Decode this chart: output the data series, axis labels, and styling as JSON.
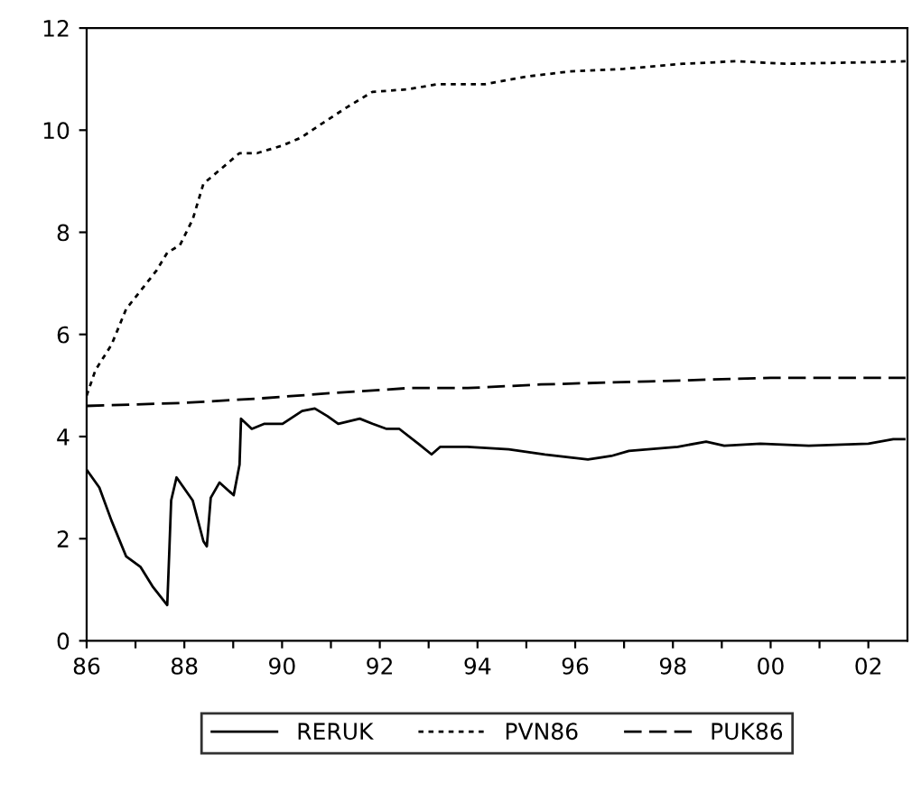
{
  "chart_data": {
    "type": "line",
    "series": [
      {
        "name": "RERUK",
        "color": "#000000",
        "line_style": "solid",
        "x": [
          1986.0,
          1986.26,
          1986.51,
          1986.81,
          1987.1,
          1987.36,
          1987.65,
          1987.69,
          1987.73,
          1987.84,
          1988.17,
          1988.39,
          1988.46,
          1988.54,
          1988.72,
          1989.01,
          1989.13,
          1989.16,
          1989.38,
          1989.64,
          1990.01,
          1990.41,
          1990.67,
          1990.93,
          1991.15,
          1991.59,
          1991.85,
          1992.14,
          1992.4,
          1992.8,
          1993.06,
          1993.24,
          1993.79,
          1994.64,
          1995.38,
          1996.26,
          1996.74,
          1997.1,
          1998.1,
          1998.68,
          1999.05,
          1999.79,
          2000.78,
          2002.0,
          2002.51,
          2002.76
        ],
        "values": [
          3.35,
          3.0,
          2.35,
          1.65,
          1.45,
          1.05,
          0.7,
          1.7,
          2.75,
          3.2,
          2.75,
          1.95,
          1.85,
          2.8,
          3.1,
          2.85,
          3.45,
          4.35,
          4.15,
          4.25,
          4.25,
          4.5,
          4.55,
          4.4,
          4.25,
          4.35,
          4.25,
          4.15,
          4.15,
          3.85,
          3.65,
          3.8,
          3.8,
          3.75,
          3.65,
          3.55,
          3.62,
          3.72,
          3.8,
          3.9,
          3.82,
          3.86,
          3.82,
          3.86,
          3.95,
          3.95
        ]
      },
      {
        "name": "PVN86",
        "color": "#000000",
        "line_style": "dotted",
        "x": [
          1986.0,
          1986.18,
          1986.51,
          1986.81,
          1987.1,
          1987.43,
          1987.65,
          1987.91,
          1988.17,
          1988.39,
          1988.76,
          1989.13,
          1989.49,
          1990.01,
          1990.38,
          1990.85,
          1991.33,
          1991.85,
          1992.58,
          1993.17,
          1993.79,
          1994.16,
          1995.01,
          1995.89,
          1996.99,
          1998.21,
          1999.31,
          2000.3,
          2002.0,
          2002.76
        ],
        "values": [
          4.8,
          5.3,
          5.8,
          6.5,
          6.85,
          7.25,
          7.6,
          7.75,
          8.25,
          8.95,
          9.25,
          9.55,
          9.55,
          9.7,
          9.85,
          10.15,
          10.45,
          10.75,
          10.8,
          10.9,
          10.9,
          10.9,
          11.05,
          11.15,
          11.2,
          11.3,
          11.35,
          11.3,
          11.33,
          11.35
        ]
      },
      {
        "name": "PUK86",
        "color": "#000000",
        "line_style": "dashed",
        "x": [
          1986.0,
          1986.7,
          1988.0,
          1989.6,
          1991.0,
          1992.6,
          1993.8,
          1995.3,
          1997.5,
          2000.0,
          2002.76
        ],
        "values": [
          4.6,
          4.62,
          4.66,
          4.75,
          4.85,
          4.95,
          4.95,
          5.02,
          5.08,
          5.15,
          5.15
        ]
      }
    ],
    "xlim": [
      1986.0,
      2002.8
    ],
    "xticks": [
      {
        "value": 1986,
        "label": "86"
      },
      {
        "value": 1987,
        "label": null
      },
      {
        "value": 1988,
        "label": "88"
      },
      {
        "value": 1989,
        "label": null
      },
      {
        "value": 1990,
        "label": "90"
      },
      {
        "value": 1991,
        "label": null
      },
      {
        "value": 1992,
        "label": "92"
      },
      {
        "value": 1993,
        "label": null
      },
      {
        "value": 1994,
        "label": "94"
      },
      {
        "value": 1995,
        "label": null
      },
      {
        "value": 1996,
        "label": "96"
      },
      {
        "value": 1997,
        "label": null
      },
      {
        "value": 1998,
        "label": "98"
      },
      {
        "value": 1999,
        "label": null
      },
      {
        "value": 2000,
        "label": "00"
      },
      {
        "value": 2001,
        "label": null
      },
      {
        "value": 2002,
        "label": "02"
      }
    ],
    "ylim": [
      0,
      12
    ],
    "yticks": [
      0,
      2,
      4,
      6,
      8,
      10,
      12
    ],
    "grid": false,
    "legend": "bottom"
  }
}
